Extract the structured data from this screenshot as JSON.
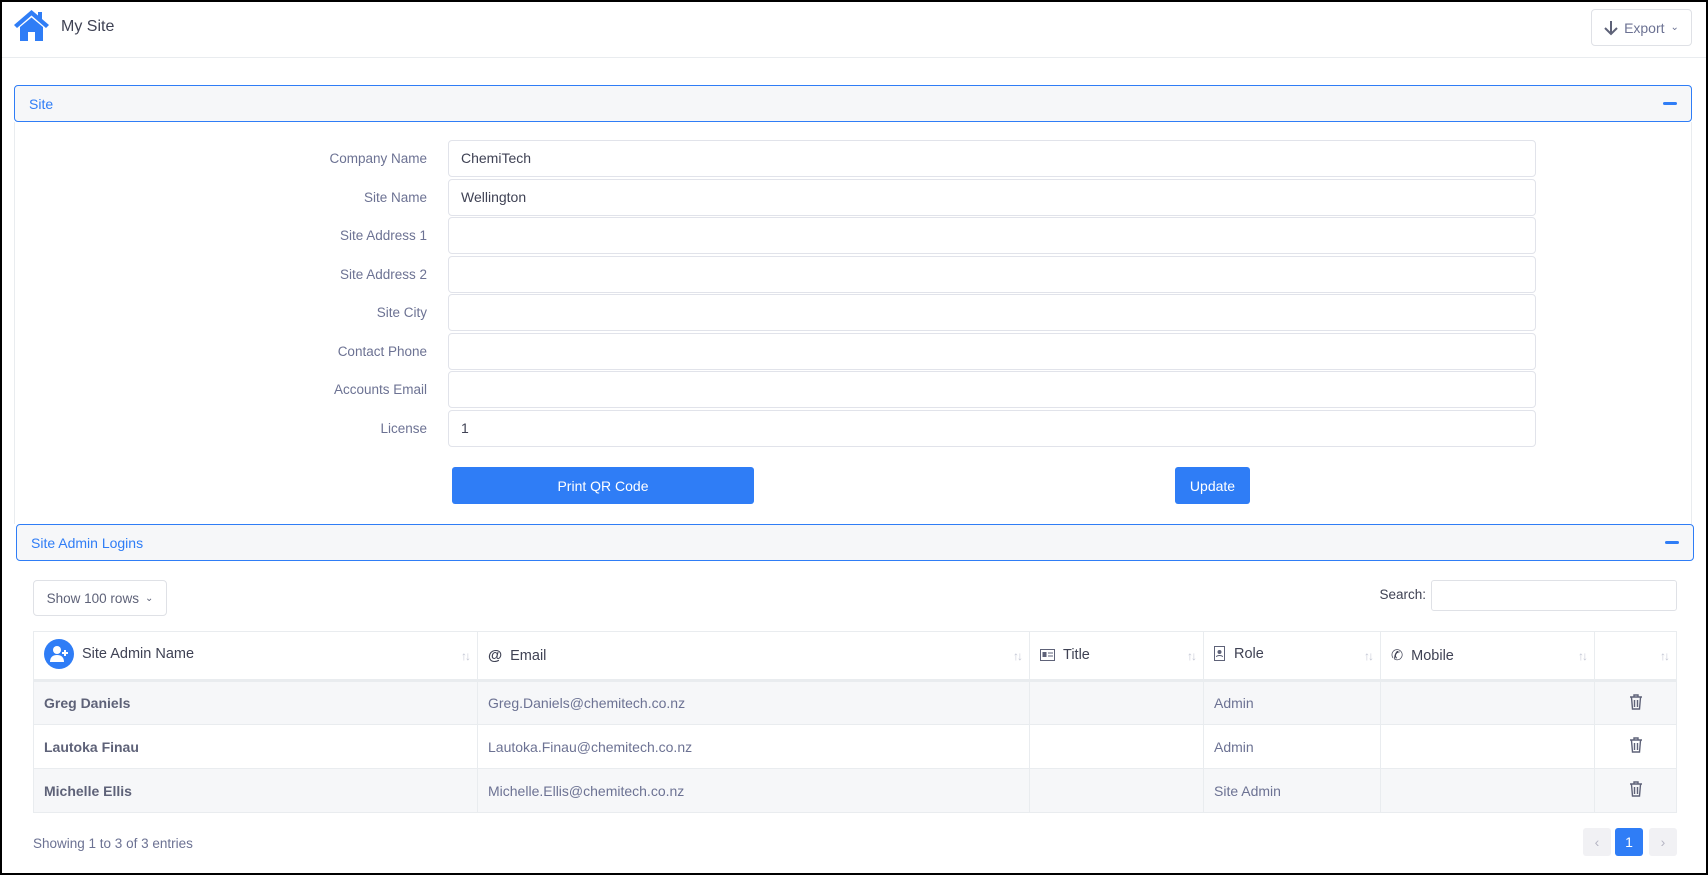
{
  "header": {
    "title": "My Site",
    "export_label": "Export",
    "home_icon": "home-icon"
  },
  "site_panel": {
    "title": "Site",
    "fields": [
      {
        "label": "Company Name",
        "value": "ChemiTech"
      },
      {
        "label": "Site Name",
        "value": "Wellington"
      },
      {
        "label": "Site Address 1",
        "value": ""
      },
      {
        "label": "Site Address 2",
        "value": ""
      },
      {
        "label": "Site City",
        "value": ""
      },
      {
        "label": "Contact Phone",
        "value": ""
      },
      {
        "label": "Accounts Email",
        "value": ""
      },
      {
        "label": "License",
        "value": "1"
      }
    ],
    "print_qr_label": "Print QR Code",
    "update_label": "Update"
  },
  "admin_panel": {
    "title": "Site Admin Logins",
    "show_rows": "Show 100 rows",
    "search_label": "Search:",
    "search_value": "",
    "columns": [
      "Site Admin Name",
      "Email",
      "Title",
      "Role",
      "Mobile",
      ""
    ],
    "rows": [
      {
        "name": "Greg Daniels",
        "email": "Greg.Daniels@chemitech.co.nz",
        "title": "",
        "role": "Admin",
        "mobile": ""
      },
      {
        "name": "Lautoka Finau",
        "email": "Lautoka.Finau@chemitech.co.nz",
        "title": "",
        "role": "Admin",
        "mobile": ""
      },
      {
        "name": "Michelle Ellis",
        "email": "Michelle.Ellis@chemitech.co.nz",
        "title": "",
        "role": "Site Admin",
        "mobile": ""
      }
    ],
    "showing": "Showing 1 to 3 of 3 entries",
    "pagination": {
      "prev": "‹",
      "current": "1",
      "next": "›"
    }
  },
  "colors": {
    "accent": "#2f7df6"
  }
}
